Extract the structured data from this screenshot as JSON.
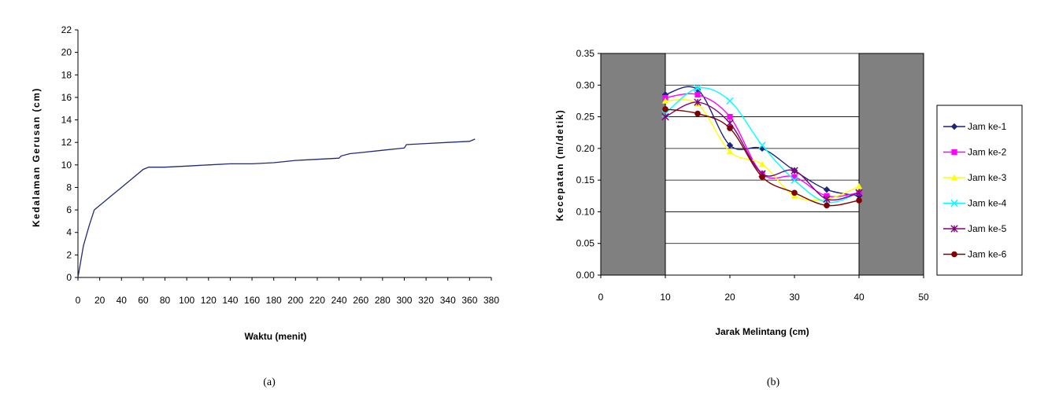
{
  "chart_data": [
    {
      "type": "line",
      "caption": "(a)",
      "xlabel": "Waktu  (menit)",
      "ylabel": "Kedalaman  Gerusan  (cm)",
      "xlim": [
        0,
        380
      ],
      "ylim": [
        0,
        22
      ],
      "xticks": [
        0,
        20,
        40,
        60,
        80,
        100,
        120,
        140,
        160,
        180,
        200,
        220,
        240,
        260,
        280,
        300,
        320,
        340,
        360,
        380
      ],
      "yticks": [
        0,
        2,
        4,
        6,
        8,
        10,
        12,
        14,
        16,
        18,
        20,
        22
      ],
      "grid": false,
      "series": [
        {
          "color": "#1f2a7a",
          "x": [
            0,
            5,
            10,
            15,
            20,
            30,
            40,
            50,
            60,
            65,
            80,
            100,
            120,
            140,
            160,
            180,
            200,
            220,
            240,
            242,
            250,
            260,
            280,
            300,
            302,
            320,
            340,
            360,
            365
          ],
          "y": [
            0,
            2.8,
            4.5,
            6.0,
            6.4,
            7.2,
            8.0,
            8.8,
            9.6,
            9.8,
            9.8,
            9.9,
            10.0,
            10.1,
            10.1,
            10.2,
            10.4,
            10.5,
            10.6,
            10.8,
            11.0,
            11.1,
            11.3,
            11.5,
            11.8,
            11.9,
            12.0,
            12.1,
            12.3
          ]
        }
      ]
    },
    {
      "type": "line",
      "caption": "(b)",
      "xlabel": "Jarak Melintang (cm)",
      "ylabel": "Kecepatan  (m/detik)",
      "xlim": [
        0,
        50
      ],
      "ylim": [
        0,
        0.35
      ],
      "xticks": [
        0,
        10,
        20,
        30,
        40,
        50
      ],
      "xtick_labels": [
        "0",
        "10",
        "20",
        "30",
        "40",
        "50"
      ],
      "yticks": [
        0,
        0.05,
        0.1,
        0.15,
        0.2,
        0.25,
        0.3,
        0.35
      ],
      "ytick_labels": [
        "0.00",
        "0.05",
        "0.10",
        "0.15",
        "0.20",
        "0.25",
        "0.30",
        "0.35"
      ],
      "grid": true,
      "legend_position": "right",
      "shaded_regions": [
        [
          0,
          10
        ],
        [
          40,
          50
        ]
      ],
      "shade_color": "#808080",
      "x": [
        10,
        15,
        20,
        25,
        30,
        35,
        40
      ],
      "series": [
        {
          "name": "Jam ke-1",
          "color": "#1a237e",
          "marker": "diamond",
          "values": [
            0.285,
            0.293,
            0.205,
            0.2,
            0.165,
            0.135,
            0.125
          ]
        },
        {
          "name": "Jam ke-2",
          "color": "#ff00ff",
          "marker": "square",
          "values": [
            0.28,
            0.285,
            0.25,
            0.16,
            0.155,
            0.125,
            0.13
          ]
        },
        {
          "name": "Jam ke-3",
          "color": "#ffff00",
          "marker": "triangle",
          "values": [
            0.275,
            0.27,
            0.195,
            0.175,
            0.125,
            0.12,
            0.14
          ]
        },
        {
          "name": "Jam ke-4",
          "color": "#00ffff",
          "marker": "x",
          "values": [
            0.255,
            0.295,
            0.275,
            0.205,
            0.15,
            0.115,
            0.13
          ]
        },
        {
          "name": "Jam ke-5",
          "color": "#800080",
          "marker": "asterisk",
          "values": [
            0.25,
            0.273,
            0.24,
            0.16,
            0.165,
            0.12,
            0.13
          ]
        },
        {
          "name": "Jam ke-6",
          "color": "#800000",
          "marker": "circle",
          "values": [
            0.262,
            0.255,
            0.232,
            0.155,
            0.13,
            0.11,
            0.118
          ]
        }
      ]
    }
  ]
}
